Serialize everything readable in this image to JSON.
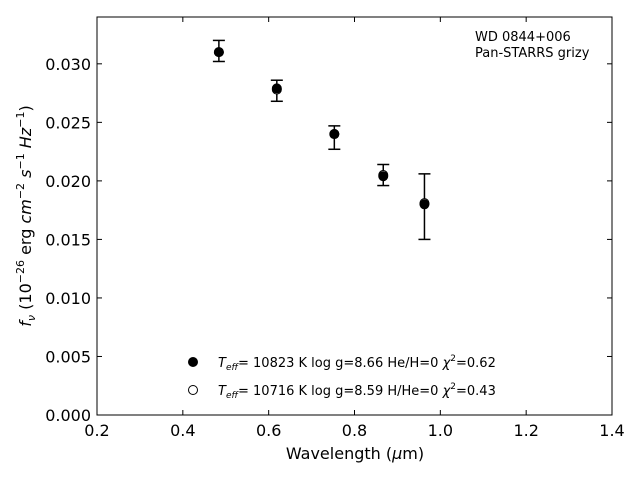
{
  "chart_data": {
    "type": "scatter",
    "xlabel": "Wavelength (μm)",
    "ylabel": "f_ν (10^-26 erg cm^-2 s^-1 Hz^-1)",
    "xlim": [
      0.2,
      1.4
    ],
    "ylim": [
      0.0,
      0.034
    ],
    "x_ticks": [
      0.2,
      0.4,
      0.6,
      0.8,
      1.0,
      1.2,
      1.4
    ],
    "x_tick_labels": [
      "0.2",
      "0.4",
      "0.6",
      "0.8",
      "1.0",
      "1.2",
      "1.4"
    ],
    "y_ticks": [
      0.0,
      0.005,
      0.01,
      0.015,
      0.02,
      0.025,
      0.03
    ],
    "y_tick_labels": [
      "0.000",
      "0.005",
      "0.010",
      "0.015",
      "0.020",
      "0.025",
      "0.030"
    ],
    "grid": false,
    "annotation": {
      "line1": "WD 0844+006",
      "line2": "Pan-STARRS grizy"
    },
    "observed": {
      "x": [
        0.484,
        0.619,
        0.753,
        0.867,
        0.963
      ],
      "y": [
        0.0311,
        0.0277,
        0.0237,
        0.0205,
        0.0178
      ],
      "yerr": [
        0.0009,
        0.0009,
        0.001,
        0.0009,
        0.0028
      ]
    },
    "series": [
      {
        "name": "T_eff= 10823 K  log g=8.66  He/H=0  χ²=0.62",
        "marker": "filled-circle",
        "x": [
          0.484,
          0.619,
          0.753,
          0.867,
          0.963
        ],
        "y": [
          0.031,
          0.0279,
          0.024,
          0.0204,
          0.018
        ]
      },
      {
        "name": "T_eff= 10716 K  log g=8.59  H/He=0  χ²=0.43",
        "marker": "open-circle",
        "x": [
          0.484,
          0.619,
          0.753,
          0.867,
          0.963
        ],
        "y": [
          0.031,
          0.0278,
          0.024,
          0.0205,
          0.0181
        ]
      }
    ],
    "legend": {
      "placement": "lower-center",
      "entries": [
        {
          "teff": "10823",
          "logg": "8.66",
          "ratio": "He/H=0",
          "chi2": "0.62",
          "marker": "filled-circle"
        },
        {
          "teff": "10716",
          "logg": "8.59",
          "ratio": "H/He=0",
          "chi2": "0.43",
          "marker": "open-circle"
        }
      ]
    }
  }
}
